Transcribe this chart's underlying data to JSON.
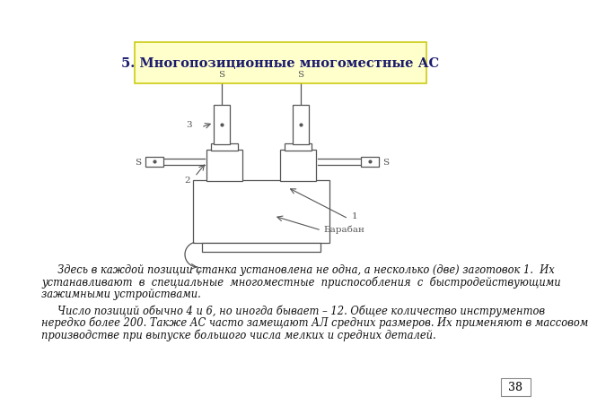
{
  "title": "5. Многопозиционные многоместные АС",
  "title_bg": "#ffffcc",
  "title_border": "#c8c800",
  "title_color": "#1a1a6e",
  "title_fontsize": 10.5,
  "page_number": "38",
  "body_color": "#111111",
  "lc": "#555555",
  "lw": 0.9,
  "para1_line1": "     Здесь в каждой позиции станка установлена не одна, а несколько (две) заготовок 1.  Их",
  "para1_line2": "устанавливают  в  специальные  многоместные  приспособления  с  быстродействующими",
  "para1_line3": "зажимными устройствами.",
  "para2_line1": "     Число позиций обычно 4 и 6, но иногда бывает – 12. Общее количество инструментов",
  "para2_line2": "нередко более 200. Также АС часто замещают АЛ средних размеров. Их применяют в массовом",
  "para2_line3": "производстве при выпуске большого числа мелких и средних деталей.",
  "text_fontsize": 8.3,
  "bg_color": "#ffffff"
}
